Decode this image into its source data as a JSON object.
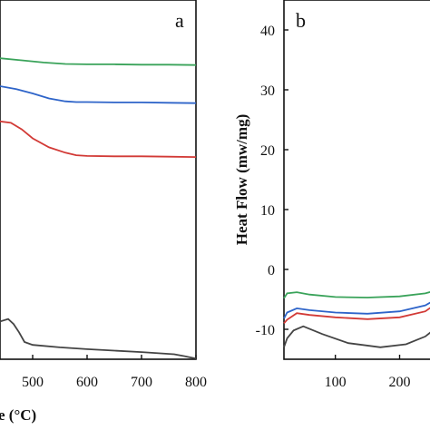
{
  "chart_data": [
    {
      "panel": "a",
      "type": "line",
      "title": "",
      "xlabel": "e (°C)",
      "ylabel": "",
      "xlim": [
        440,
        800
      ],
      "ylim": [
        0,
        1
      ],
      "xticks": [
        500,
        600,
        700,
        800
      ],
      "xtick_labels": [
        "500",
        "600",
        "700",
        "800"
      ],
      "grid": false,
      "legend": "none",
      "series": [
        {
          "color": "#3aa35a",
          "x": [
            440,
            480,
            520,
            560,
            600,
            650,
            700,
            750,
            800
          ],
          "y": [
            0.838,
            0.832,
            0.826,
            0.822,
            0.821,
            0.821,
            0.82,
            0.82,
            0.819
          ]
        },
        {
          "color": "#2e64c9",
          "x": [
            440,
            470,
            500,
            530,
            560,
            580,
            600,
            650,
            700,
            750,
            800
          ],
          "y": [
            0.76,
            0.752,
            0.74,
            0.726,
            0.718,
            0.716,
            0.716,
            0.715,
            0.715,
            0.714,
            0.713
          ]
        },
        {
          "color": "#d23a36",
          "x": [
            440,
            460,
            480,
            500,
            530,
            560,
            580,
            600,
            650,
            700,
            750,
            800
          ],
          "y": [
            0.662,
            0.658,
            0.64,
            0.615,
            0.59,
            0.575,
            0.568,
            0.566,
            0.565,
            0.565,
            0.564,
            0.563
          ]
        },
        {
          "color": "#444444",
          "x": [
            440,
            455,
            465,
            475,
            485,
            500,
            550,
            600,
            650,
            700,
            760,
            780,
            800
          ],
          "y": [
            0.105,
            0.112,
            0.098,
            0.075,
            0.048,
            0.04,
            0.033,
            0.028,
            0.024,
            0.02,
            0.014,
            0.008,
            0.002
          ]
        }
      ]
    },
    {
      "panel": "b",
      "type": "line",
      "title": "",
      "xlabel": "",
      "ylabel": "Heat Flow (mw/mg)",
      "xlim": [
        20,
        260
      ],
      "ylim": [
        -15,
        45
      ],
      "xticks": [
        100,
        200
      ],
      "xtick_labels": [
        "100",
        "200"
      ],
      "yticks": [
        -10,
        0,
        10,
        20,
        30,
        40
      ],
      "ytick_labels": [
        "-10",
        "0",
        "10",
        "20",
        "30",
        "40"
      ],
      "grid": false,
      "legend": "none",
      "series": [
        {
          "color": "#3aa35a",
          "x": [
            20,
            25,
            40,
            60,
            100,
            150,
            200,
            240,
            260
          ],
          "y": [
            -4.8,
            -4.0,
            -3.8,
            -4.2,
            -4.6,
            -4.7,
            -4.5,
            -4.0,
            -3.4
          ]
        },
        {
          "color": "#2e64c9",
          "x": [
            20,
            25,
            40,
            60,
            100,
            150,
            200,
            240,
            260
          ],
          "y": [
            -8.2,
            -7.2,
            -6.5,
            -6.8,
            -7.2,
            -7.4,
            -7.0,
            -6.0,
            -4.8
          ]
        },
        {
          "color": "#d23a36",
          "x": [
            20,
            25,
            40,
            60,
            100,
            150,
            200,
            240,
            260
          ],
          "y": [
            -9.0,
            -8.4,
            -7.3,
            -7.6,
            -8.0,
            -8.3,
            -8.0,
            -7.0,
            -5.5
          ]
        },
        {
          "color": "#444444",
          "x": [
            20,
            25,
            35,
            50,
            80,
            120,
            170,
            210,
            240,
            260
          ],
          "y": [
            -13.0,
            -11.5,
            -10.2,
            -9.5,
            -10.8,
            -12.3,
            -13.0,
            -12.5,
            -11.2,
            -9.5
          ]
        }
      ]
    }
  ]
}
